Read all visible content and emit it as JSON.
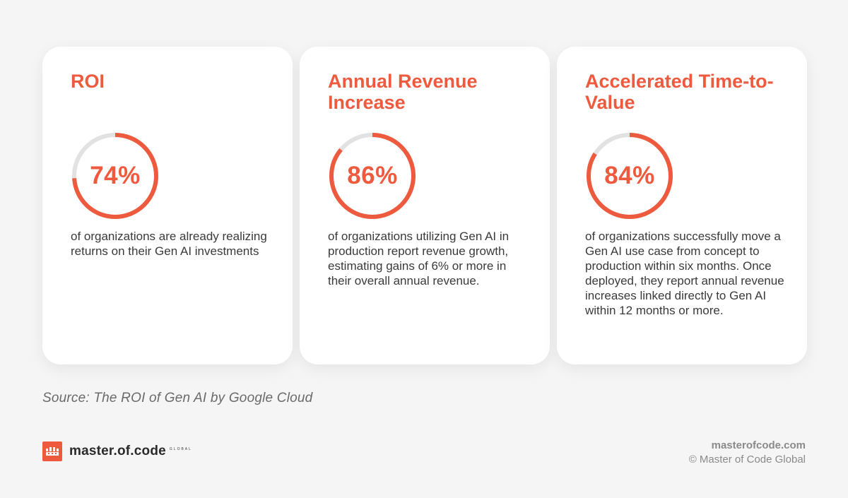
{
  "colors": {
    "accent": "#ee5a3e",
    "track": "#e2e2e2"
  },
  "cards": [
    {
      "title": "ROI",
      "value_text": "74%",
      "progress": 0.74,
      "description": "of organizations are already realizing returns on their Gen AI investments"
    },
    {
      "title": "Annual Revenue Increase",
      "value_text": "86%",
      "progress": 0.86,
      "description": "of organizations utilizing Gen AI in production report revenue growth, estimating gains of 6% or more in their overall annual revenue."
    },
    {
      "title": "Accelerated Time-to-Value",
      "value_text": "84%",
      "progress": 0.84,
      "description": "of organizations successfully move a Gen AI use case from concept to production within six months. Once deployed, they report annual revenue increases linked directly to Gen AI within 12 months or more."
    }
  ],
  "source": "Source: The ROI of Gen AI by Google Cloud",
  "brand": {
    "name": "master.of.code",
    "suffix": "GLOBAL",
    "logo_icon": "crown-icon"
  },
  "footer": {
    "website": "masterofcode.com",
    "copyright": "© Master of Code Global"
  }
}
